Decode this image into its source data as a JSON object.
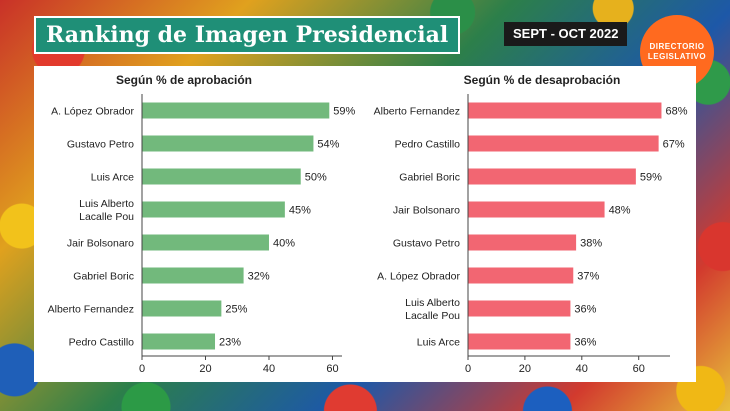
{
  "header": {
    "title": "Ranking de Imagen Presidencial",
    "date_badge": "SEPT - OCT 2022",
    "logo_line1": "DIRECTORIO",
    "logo_line2": "LEGISLATIVO"
  },
  "colors": {
    "approval_bar": "#72b97c",
    "disapproval_bar": "#f26672",
    "title_bg": "#1f8f77",
    "logo_bg": "#ff6a1f"
  },
  "chart_data": [
    {
      "type": "bar",
      "orientation": "horizontal",
      "title": "Según % de aprobación",
      "categories": [
        [
          "A. López Obrador"
        ],
        [
          "Gustavo Petro"
        ],
        [
          "Luis Arce"
        ],
        [
          "Luis Alberto",
          "Lacalle Pou"
        ],
        [
          "Jair Bolsonaro"
        ],
        [
          "Gabriel Boric"
        ],
        [
          "Alberto Fernandez"
        ],
        [
          "Pedro Castillo"
        ]
      ],
      "values": [
        59,
        54,
        50,
        45,
        40,
        32,
        25,
        23
      ],
      "data_labels": [
        "59%",
        "54%",
        "50%",
        "45%",
        "40%",
        "32%",
        "25%",
        "23%"
      ],
      "xlim": [
        0,
        63
      ],
      "xticks": [
        0,
        20,
        40,
        60
      ],
      "grid": false
    },
    {
      "type": "bar",
      "orientation": "horizontal",
      "title": "Según % de desaprobación",
      "categories": [
        [
          "Alberto Fernandez"
        ],
        [
          "Pedro Castillo"
        ],
        [
          "Gabriel Boric"
        ],
        [
          "Jair Bolsonaro"
        ],
        [
          "Gustavo Petro"
        ],
        [
          "A. López Obrador"
        ],
        [
          "Luis Alberto",
          "Lacalle Pou"
        ],
        [
          "Luis Arce"
        ]
      ],
      "values": [
        68,
        67,
        59,
        48,
        38,
        37,
        36,
        36
      ],
      "data_labels": [
        "68%",
        "67%",
        "59%",
        "48%",
        "38%",
        "37%",
        "36%",
        "36%"
      ],
      "xlim": [
        0,
        71
      ],
      "xticks": [
        0,
        20,
        40,
        60
      ],
      "grid": false
    }
  ]
}
